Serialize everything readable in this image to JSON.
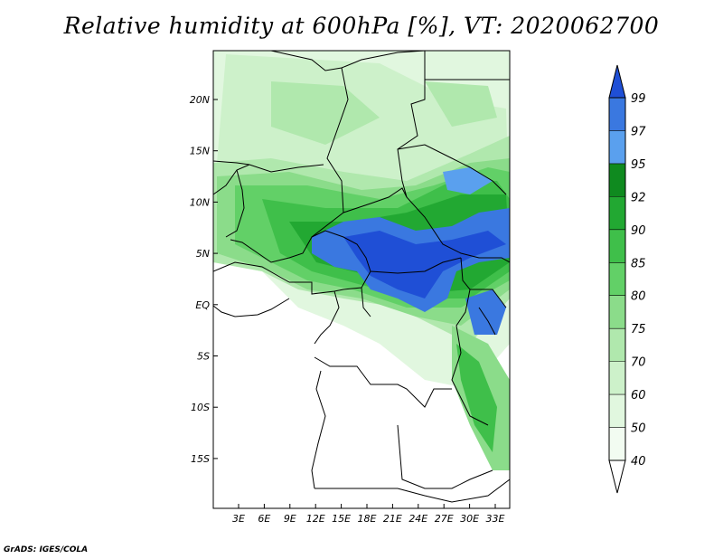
{
  "title": "Relative humidity at 600hPa [%], VT: 2020062700",
  "credit": "GrADS: IGES/COLA",
  "map": {
    "lon_ticks": [
      "3E",
      "6E",
      "9E",
      "12E",
      "15E",
      "18E",
      "21E",
      "24E",
      "27E",
      "30E",
      "33E"
    ],
    "lat_ticks": [
      "20N",
      "15N",
      "10N",
      "5N",
      "EQ",
      "5S",
      "10S",
      "15S"
    ]
  },
  "colorbar": {
    "levels": [
      "99",
      "97",
      "95",
      "92",
      "90",
      "85",
      "80",
      "75",
      "70",
      "60",
      "50",
      "40"
    ],
    "colors": [
      "#1f4fd6",
      "#3a78e0",
      "#5aa0ee",
      "#0f8a1f",
      "#22a832",
      "#3fbf4a",
      "#62d067",
      "#8bdc8a",
      "#b0e8ad",
      "#cdf1ca",
      "#e1f7df",
      "#f2fcf1"
    ]
  }
}
